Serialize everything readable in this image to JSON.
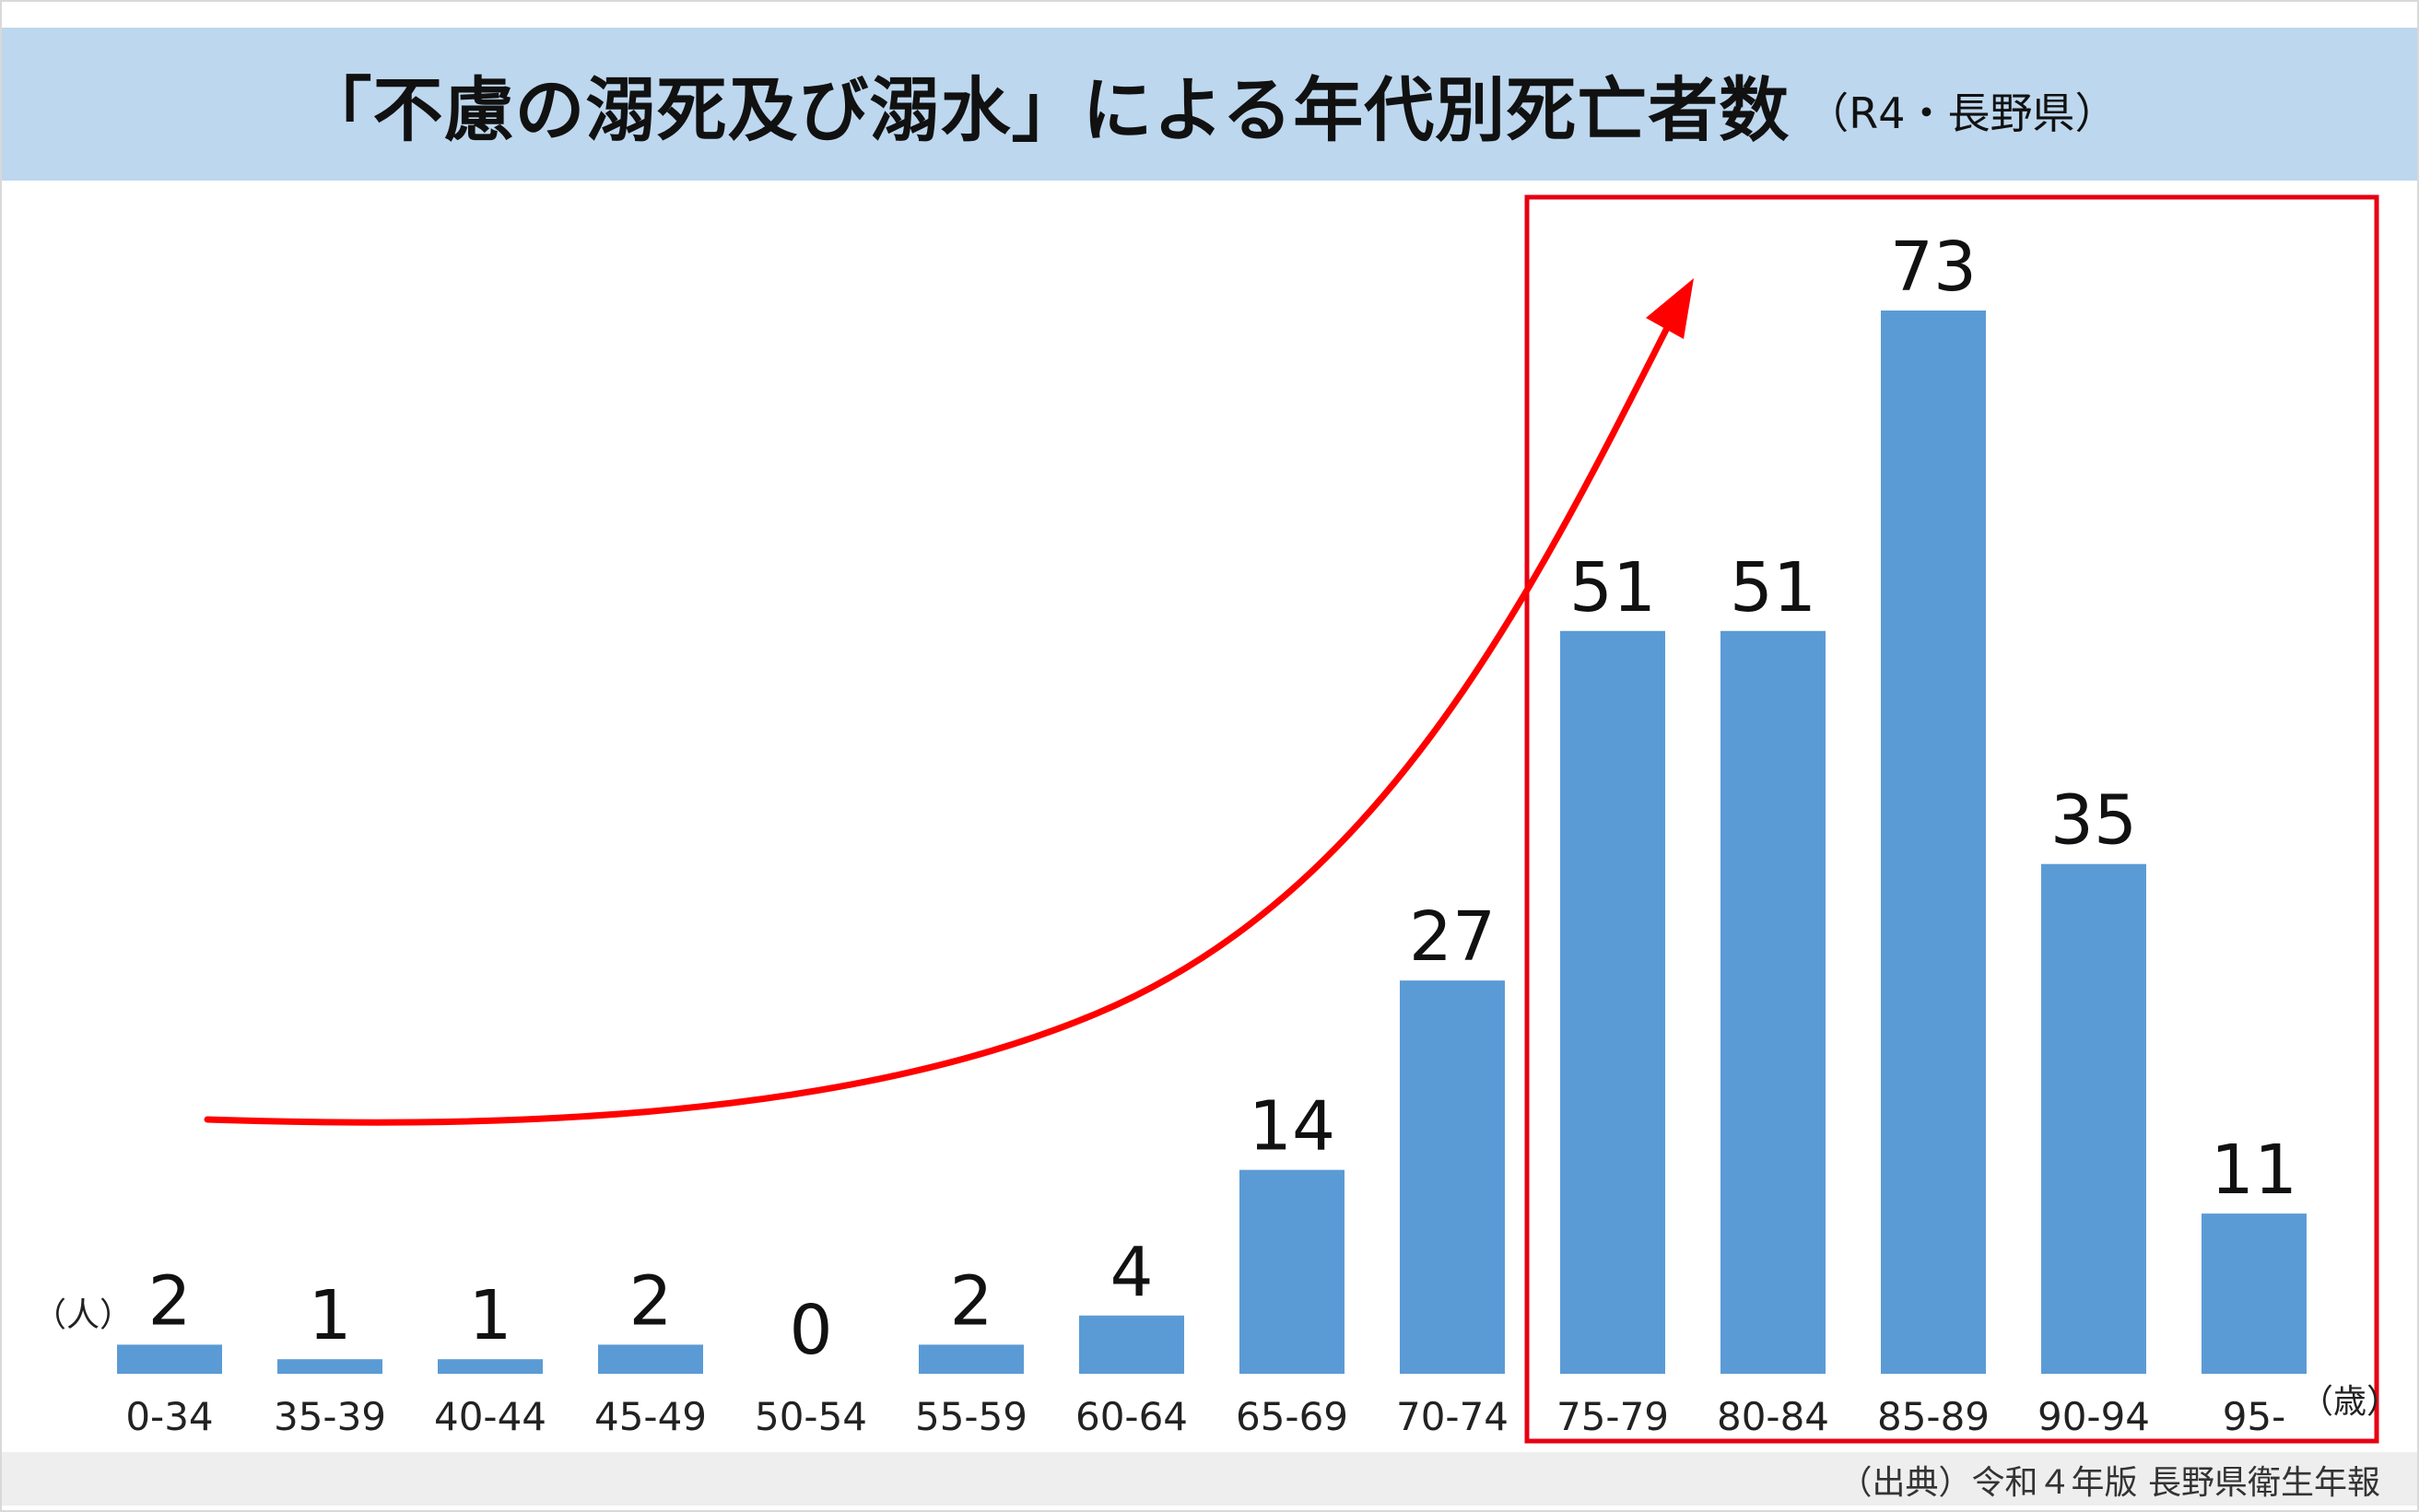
{
  "title": {
    "main": "「不慮の溺死及び溺水」による年代別死亡者数",
    "sub": "（R4・長野県）"
  },
  "units": {
    "y": "（人）",
    "x": "（歳）"
  },
  "source": "（出典）令和４年版 長野県衛生年報",
  "colors": {
    "bar": "#5b9bd5",
    "highlight": "#e60012",
    "arrow": "#ff0000",
    "title_band": "#bdd7ee"
  },
  "chart_data": {
    "type": "bar",
    "categories": [
      "0-34",
      "35-39",
      "40-44",
      "45-49",
      "50-54",
      "55-59",
      "60-64",
      "65-69",
      "70-74",
      "75-79",
      "80-84",
      "85-89",
      "90-94",
      "95-"
    ],
    "values": [
      2,
      1,
      1,
      2,
      0,
      2,
      4,
      14,
      27,
      51,
      51,
      73,
      35,
      11
    ],
    "data_labels": [
      "2",
      "1",
      "1",
      "2",
      "0",
      "2",
      "4",
      "14",
      "27",
      "51",
      "51",
      "73",
      "35",
      "11"
    ],
    "xlabel": "（歳）",
    "ylabel": "（人）",
    "ylim": [
      0,
      73
    ],
    "grid": false,
    "highlighted_categories": [
      "75-79",
      "80-84",
      "85-89",
      "90-94",
      "95-"
    ],
    "trend_arrow": true
  }
}
